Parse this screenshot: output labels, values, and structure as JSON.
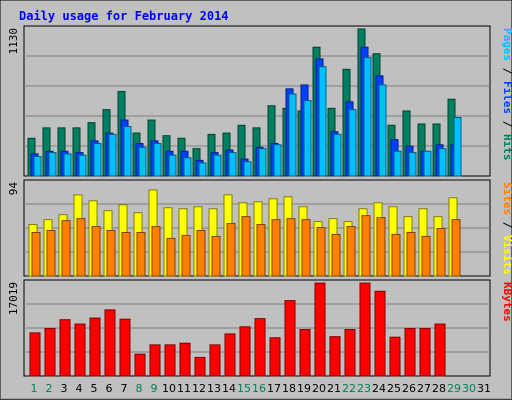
{
  "chart_data": {
    "type": "bar",
    "title": "Daily usage for February 2014",
    "x": [
      "1",
      "2",
      "3",
      "4",
      "5",
      "6",
      "7",
      "8",
      "9",
      "10",
      "11",
      "12",
      "13",
      "14",
      "15",
      "16",
      "17",
      "18",
      "19",
      "20",
      "21",
      "22",
      "23",
      "24",
      "25",
      "26",
      "27",
      "28",
      "29",
      "30",
      "31"
    ],
    "weekend_days": [
      "1",
      "2",
      "8",
      "9",
      "15",
      "16",
      "22",
      "23",
      "29",
      "30"
    ],
    "panels": [
      {
        "ymax_label": "1130",
        "ymax": 1130,
        "right_labels": [
          {
            "text": "Pages",
            "color": "#00c0ff"
          },
          {
            "text": " / ",
            "color": "#000000"
          },
          {
            "text": "Files",
            "color": "#0040ff"
          },
          {
            "text": " / ",
            "color": "#000000"
          },
          {
            "text": "Hits",
            "color": "#008060"
          }
        ],
        "series": [
          {
            "name": "Hits",
            "color": "#008060",
            "values": [
              290,
              370,
              370,
              370,
              410,
              510,
              650,
              330,
              430,
              310,
              290,
              210,
              320,
              330,
              390,
              370,
              540,
              520,
              500,
              990,
              520,
              820,
              1130,
              940,
              390,
              500,
              400,
              400,
              590,
              0,
              0
            ]
          },
          {
            "name": "Files",
            "color": "#0040ff",
            "values": [
              170,
              190,
              190,
              180,
              270,
              330,
              430,
              250,
              270,
              190,
              190,
              120,
              180,
              200,
              130,
              220,
              250,
              670,
              700,
              900,
              340,
              570,
              990,
              770,
              280,
              230,
              190,
              240,
              240,
              0,
              0
            ]
          },
          {
            "name": "Pages",
            "color": "#00c0ff",
            "values": [
              150,
              180,
              170,
              160,
              250,
              320,
              380,
              220,
              250,
              160,
              140,
              100,
              160,
              180,
              110,
              210,
              240,
              630,
              580,
              840,
              320,
              510,
              910,
              700,
              190,
              180,
              190,
              210,
              450,
              0,
              0
            ]
          }
        ]
      },
      {
        "ymax_label": "94",
        "ymax": 94,
        "right_labels": [
          {
            "text": "Sites",
            "color": "#ff8000"
          },
          {
            "text": " / ",
            "color": "#000000"
          },
          {
            "text": "Visits",
            "color": "#ffff00"
          }
        ],
        "series": [
          {
            "name": "Visits",
            "color": "#ffff00",
            "values": [
              52,
              57,
              62,
              82,
              76,
              66,
              72,
              64,
              87,
              69,
              68,
              70,
              68,
              82,
              74,
              75,
              78,
              80,
              70,
              55,
              58,
              55,
              68,
              74,
              70,
              60,
              68,
              60,
              79,
              0,
              0
            ]
          },
          {
            "name": "Sites",
            "color": "#ff8000",
            "values": [
              44,
              46,
              56,
              58,
              50,
              46,
              44,
              44,
              50,
              38,
              41,
              46,
              40,
              53,
              60,
              52,
              57,
              58,
              57,
              49,
              42,
              50,
              61,
              59,
              42,
              44,
              40,
              48,
              57,
              0,
              0
            ]
          }
        ]
      },
      {
        "ymax_label": "17019",
        "ymax": 17019,
        "right_labels": [
          {
            "text": "KBytes",
            "color": "#ff0000"
          }
        ],
        "series": [
          {
            "name": "KBytes",
            "color": "#ff0000",
            "values": [
              7900,
              8700,
              10300,
              9500,
              10600,
              12100,
              10400,
              4000,
              5700,
              5700,
              6000,
              3400,
              5700,
              7700,
              9000,
              10500,
              7000,
              13800,
              8500,
              17000,
              7200,
              8500,
              17000,
              15500,
              7100,
              8700,
              8700,
              9500,
              0,
              0,
              0
            ]
          }
        ]
      }
    ]
  }
}
